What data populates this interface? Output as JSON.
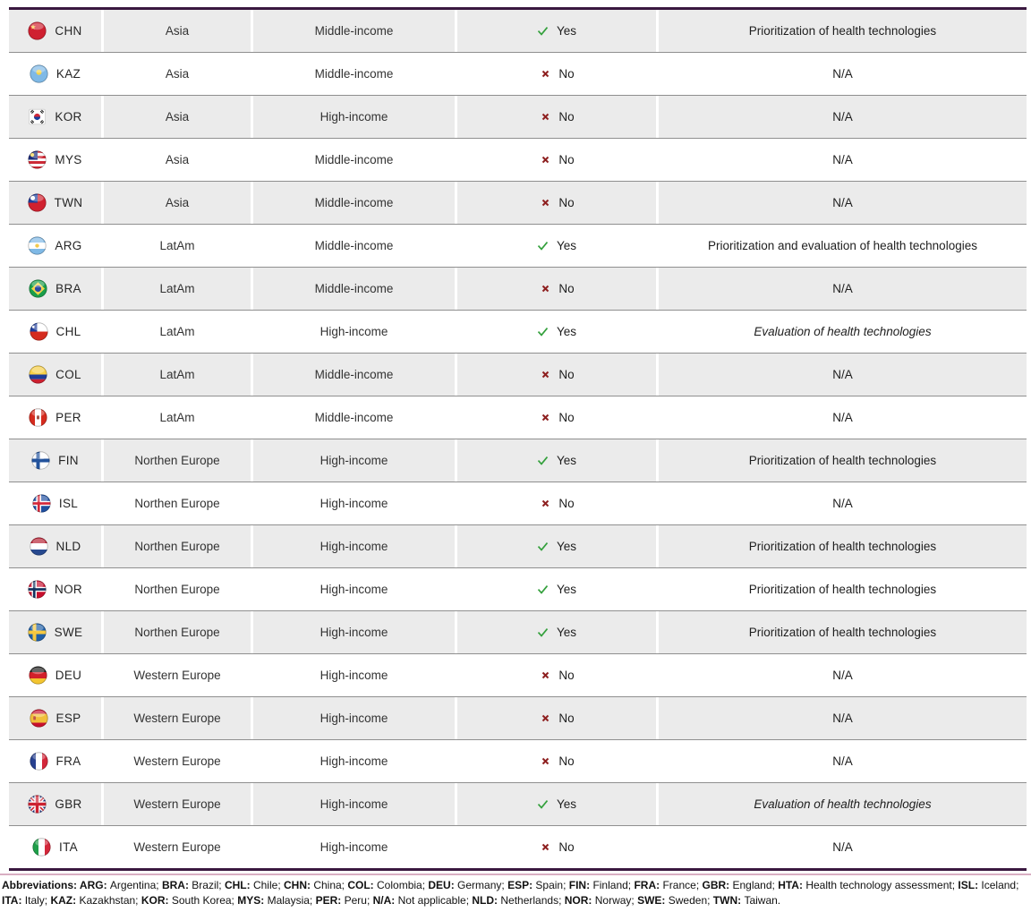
{
  "table": {
    "columns": [
      "country",
      "region",
      "income_level",
      "hta_in_place",
      "hta_description"
    ],
    "yes_label": "Yes",
    "no_label": "No",
    "rows": [
      {
        "code": "CHN",
        "region": "Asia",
        "income": "Middle-income",
        "hta": "Yes",
        "desc": "Prioritization of health technologies",
        "italic": false
      },
      {
        "code": "KAZ",
        "region": "Asia",
        "income": "Middle-income",
        "hta": "No",
        "desc": "N/A",
        "italic": false
      },
      {
        "code": "KOR",
        "region": "Asia",
        "income": "High-income",
        "hta": "No",
        "desc": "N/A",
        "italic": false
      },
      {
        "code": "MYS",
        "region": "Asia",
        "income": "Middle-income",
        "hta": "No",
        "desc": "N/A",
        "italic": false
      },
      {
        "code": "TWN",
        "region": "Asia",
        "income": "Middle-income",
        "hta": "No",
        "desc": "N/A",
        "italic": false
      },
      {
        "code": "ARG",
        "region": "LatAm",
        "income": "Middle-income",
        "hta": "Yes",
        "desc": "Prioritization and evaluation of health technologies",
        "italic": false
      },
      {
        "code": "BRA",
        "region": "LatAm",
        "income": "Middle-income",
        "hta": "No",
        "desc": "N/A",
        "italic": false
      },
      {
        "code": "CHL",
        "region": "LatAm",
        "income": "High-income",
        "hta": "Yes",
        "desc": "Evaluation of health technologies",
        "italic": true
      },
      {
        "code": "COL",
        "region": "LatAm",
        "income": "Middle-income",
        "hta": "No",
        "desc": "N/A",
        "italic": false
      },
      {
        "code": "PER",
        "region": "LatAm",
        "income": "Middle-income",
        "hta": "No",
        "desc": "N/A",
        "italic": false
      },
      {
        "code": "FIN",
        "region": "Northen Europe",
        "income": "High-income",
        "hta": "Yes",
        "desc": "Prioritization of health technologies",
        "italic": false
      },
      {
        "code": "ISL",
        "region": "Northen Europe",
        "income": "High-income",
        "hta": "No",
        "desc": "N/A",
        "italic": false
      },
      {
        "code": "NLD",
        "region": "Northen Europe",
        "income": "High-income",
        "hta": "Yes",
        "desc": "Prioritization of health technologies",
        "italic": false
      },
      {
        "code": "NOR",
        "region": "Northen Europe",
        "income": "High-income",
        "hta": "Yes",
        "desc": "Prioritization of health technologies",
        "italic": false
      },
      {
        "code": "SWE",
        "region": "Northen Europe",
        "income": "High-income",
        "hta": "Yes",
        "desc": "Prioritization of health technologies",
        "italic": false
      },
      {
        "code": "DEU",
        "region": "Western Europe",
        "income": "High-income",
        "hta": "No",
        "desc": "N/A",
        "italic": false
      },
      {
        "code": "ESP",
        "region": "Western Europe",
        "income": "High-income",
        "hta": "No",
        "desc": "N/A",
        "italic": false
      },
      {
        "code": "FRA",
        "region": "Western Europe",
        "income": "High-income",
        "hta": "No",
        "desc": "N/A",
        "italic": false
      },
      {
        "code": "GBR",
        "region": "Western Europe",
        "income": "High-income",
        "hta": "Yes",
        "desc": "Evaluation of health technologies",
        "italic": true
      },
      {
        "code": "ITA",
        "region": "Western Europe",
        "income": "High-income",
        "hta": "No",
        "desc": "N/A",
        "italic": false
      }
    ],
    "icons": {
      "yes_icon": "check-icon",
      "no_icon": "x-icon",
      "flag_icon_suffix": "-flag-icon"
    }
  },
  "footer": {
    "lines": [
      {
        "label": "Abbreviations:",
        "entries": [
          {
            "code": "ARG",
            "name": "Argentina"
          },
          {
            "code": "BRA",
            "name": "Brazil"
          },
          {
            "code": "CHL",
            "name": "Chile"
          },
          {
            "code": "CHN",
            "name": "China"
          },
          {
            "code": "COL",
            "name": "Colombia"
          },
          {
            "code": "DEU",
            "name": "Germany"
          },
          {
            "code": "ESP",
            "name": "Spain"
          },
          {
            "code": "FIN",
            "name": "Finland"
          },
          {
            "code": "FRA",
            "name": "France"
          },
          {
            "code": "GBR",
            "name": "England"
          },
          {
            "code": "HTA",
            "name": "Health technology assessment"
          },
          {
            "code": "ISL",
            "name": "Iceland"
          }
        ],
        "end": ";"
      },
      {
        "label": "",
        "entries": [
          {
            "code": "ITA",
            "name": "Italy"
          },
          {
            "code": "KAZ",
            "name": "Kazakhstan"
          },
          {
            "code": "KOR",
            "name": "South Korea"
          },
          {
            "code": "MYS",
            "name": "Malaysia"
          },
          {
            "code": "PER",
            "name": "Peru"
          },
          {
            "code": "N/A",
            "name": "Not applicable"
          },
          {
            "code": "NLD",
            "name": "Netherlands"
          },
          {
            "code": "NOR",
            "name": "Norway"
          },
          {
            "code": "SWE",
            "name": "Sweden"
          },
          {
            "code": "TWN",
            "name": "Taiwan"
          }
        ],
        "end": "."
      }
    ]
  },
  "colors": {
    "purple": "#3a1840",
    "pink": "#d9aec3",
    "stripe": "#ebebeb",
    "separator": "#8f8f8f",
    "green": "#33a03c",
    "red": "#8e2020",
    "text": "#2f2f2f"
  }
}
